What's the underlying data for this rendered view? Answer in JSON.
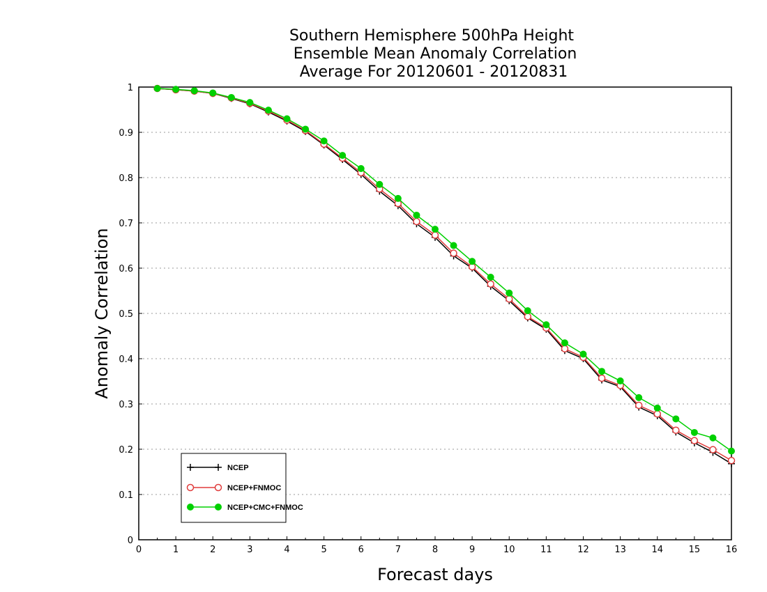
{
  "chart_data": {
    "type": "line",
    "title": [
      "Southern Hemisphere 500hPa Height",
      "Ensemble Mean Anomaly Correlation",
      "Average For 20120601 - 20120831"
    ],
    "xlabel": "Forecast days",
    "ylabel": "Anomaly Correlation",
    "xlim": [
      0,
      16
    ],
    "ylim": [
      0,
      1
    ],
    "xticks": [
      0,
      1,
      2,
      3,
      4,
      5,
      6,
      7,
      8,
      9,
      10,
      11,
      12,
      13,
      14,
      15,
      16
    ],
    "yticks": [
      0,
      0.1,
      0.2,
      0.3,
      0.4,
      0.5,
      0.6,
      0.7,
      0.8,
      0.9,
      1
    ],
    "ytick_labels": [
      "0",
      "0.1",
      "0.2",
      "0.3",
      "0.4",
      "0.5",
      "0.6",
      "0.7",
      "0.8",
      "0.9",
      "1"
    ],
    "grid": true,
    "legend_position": "bottom-left",
    "x": [
      0.5,
      1,
      1.5,
      2,
      2.5,
      3,
      3.5,
      4,
      4.5,
      5,
      5.5,
      6,
      6.5,
      7,
      7.5,
      8,
      8.5,
      9,
      9.5,
      10,
      10.5,
      11,
      11.5,
      12,
      12.5,
      13,
      13.5,
      14,
      14.5,
      15,
      15.5,
      16
    ],
    "series": [
      {
        "name": "NCEP",
        "color": "#000000",
        "marker": "plus",
        "values": [
          0.997,
          0.994,
          0.991,
          0.986,
          0.975,
          0.963,
          0.945,
          0.925,
          0.902,
          0.872,
          0.84,
          0.807,
          0.77,
          0.738,
          0.698,
          0.668,
          0.627,
          0.6,
          0.56,
          0.528,
          0.49,
          0.465,
          0.418,
          0.4,
          0.353,
          0.338,
          0.293,
          0.274,
          0.238,
          0.214,
          0.193,
          0.168
        ]
      },
      {
        "name": "NCEP+FNMOC",
        "color": "#e03c3c",
        "marker": "open-circle",
        "values": [
          0.997,
          0.994,
          0.991,
          0.986,
          0.976,
          0.964,
          0.947,
          0.927,
          0.904,
          0.874,
          0.843,
          0.811,
          0.775,
          0.743,
          0.703,
          0.673,
          0.633,
          0.603,
          0.565,
          0.532,
          0.493,
          0.468,
          0.422,
          0.403,
          0.357,
          0.341,
          0.297,
          0.278,
          0.242,
          0.219,
          0.199,
          0.175
        ]
      },
      {
        "name": "NCEP+CMC+FNMOC",
        "color": "#00d000",
        "marker": "filled-circle",
        "values": [
          0.997,
          0.995,
          0.992,
          0.987,
          0.977,
          0.966,
          0.949,
          0.93,
          0.907,
          0.881,
          0.849,
          0.82,
          0.785,
          0.754,
          0.717,
          0.686,
          0.65,
          0.615,
          0.58,
          0.545,
          0.506,
          0.475,
          0.435,
          0.41,
          0.372,
          0.351,
          0.314,
          0.291,
          0.267,
          0.237,
          0.225,
          0.196
        ]
      }
    ]
  }
}
